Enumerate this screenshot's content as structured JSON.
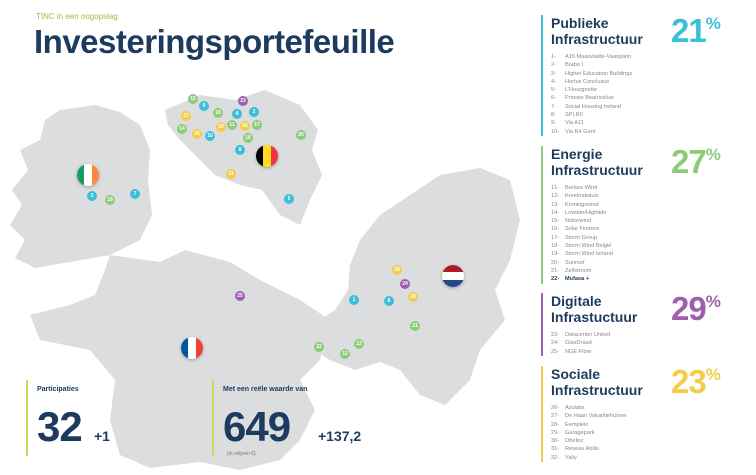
{
  "header": {
    "subtitle": "TINC in een oogopslag",
    "title": "Investeringsportefeuille"
  },
  "stats": {
    "participations": {
      "label": "Participaties",
      "value": "32",
      "delta": "+1"
    },
    "fair_value": {
      "label": "Met een reële waarde van",
      "value": "649",
      "delta": "+137,2",
      "unit": "(in miljoen €)"
    }
  },
  "colors": {
    "publiek": "#3bbfd8",
    "energie": "#8dcb7a",
    "digitaal": "#a05fae",
    "sociaal": "#f2cc4a",
    "navy": "#1d3a5f"
  },
  "categories": [
    {
      "title_1": "Publieke",
      "title_2": "Infrastructuur",
      "pct": "21",
      "pct_sign": "%",
      "items": [
        {
          "n": "1-",
          "name": "A15 Maasvlakte-Vaanplein"
        },
        {
          "n": "2-",
          "name": "Brabo I"
        },
        {
          "n": "3-",
          "name": "Higher Education Buildings"
        },
        {
          "n": "4-",
          "name": "Hortus Conclusus"
        },
        {
          "n": "5-",
          "name": "L'Hourgnette"
        },
        {
          "n": "6-",
          "name": "Prinses Beatrixsluis"
        },
        {
          "n": "7-",
          "name": "Social Housing Ireland"
        },
        {
          "n": "8-",
          "name": "SPI.R0"
        },
        {
          "n": "9-",
          "name": "Via A11"
        },
        {
          "n": "10-",
          "name": "Via R4 Gent"
        }
      ]
    },
    {
      "title_1": "Energie",
      "title_2": "Infrastructuur",
      "pct": "27",
      "pct_sign": "%",
      "items": [
        {
          "n": "11-",
          "name": "Berlare Wind"
        },
        {
          "n": "12-",
          "name": "Kreekraksluis"
        },
        {
          "n": "13-",
          "name": "Kroningswind"
        },
        {
          "n": "14-",
          "name": "Lowtide/Hightide"
        },
        {
          "n": "15-",
          "name": "Nobelwind"
        },
        {
          "n": "16-",
          "name": "Solar Finance"
        },
        {
          "n": "17-",
          "name": "Storm Group"
        },
        {
          "n": "18-",
          "name": "Storm Wind België"
        },
        {
          "n": "19-",
          "name": "Storm Wind Ierland"
        },
        {
          "n": "20-",
          "name": "Sunroof"
        },
        {
          "n": "21-",
          "name": "Zelfstroom"
        },
        {
          "n": "22-",
          "name": "Mufasa +"
        }
      ]
    },
    {
      "title_1": "Digitale",
      "title_2": "Infrastuctuur",
      "pct": "29",
      "pct_sign": "%",
      "items": [
        {
          "n": "23-",
          "name": "Datacenter United"
        },
        {
          "n": "24-",
          "name": "GlasDraad"
        },
        {
          "n": "25-",
          "name": "NGE Fibre"
        }
      ]
    },
    {
      "title_1": "Sociale",
      "title_2": "Infrastructuur",
      "pct": "23",
      "pct_sign": "%",
      "items": [
        {
          "n": "26-",
          "name": "Azulatis"
        },
        {
          "n": "27-",
          "name": "De Haan Vakantiehuizen"
        },
        {
          "n": "28-",
          "name": "Eemplein"
        },
        {
          "n": "29-",
          "name": "Garagepark"
        },
        {
          "n": "30-",
          "name": "Obelisc"
        },
        {
          "n": "31-",
          "name": "Réseau Abilis"
        },
        {
          "n": "32-",
          "name": "Yally"
        }
      ]
    }
  ],
  "markers": {
    "m1": "1",
    "m2": "2",
    "m3": "3",
    "m4": "4",
    "m5": "5",
    "m6": "6",
    "m7": "7",
    "m8": "8",
    "m9": "9",
    "m10": "10",
    "m11": "11",
    "m12": "12",
    "m13": "13",
    "m14": "14",
    "m15": "15",
    "m16": "16",
    "m17": "17",
    "m18": "18",
    "m19": "19",
    "m20": "20",
    "m21": "21",
    "m22": "22",
    "m23": "23",
    "m24": "24",
    "m25": "25",
    "m26": "26",
    "m27": "27",
    "m28": "28",
    "m29": "29",
    "m30": "30",
    "m31": "31",
    "m32": "32"
  }
}
